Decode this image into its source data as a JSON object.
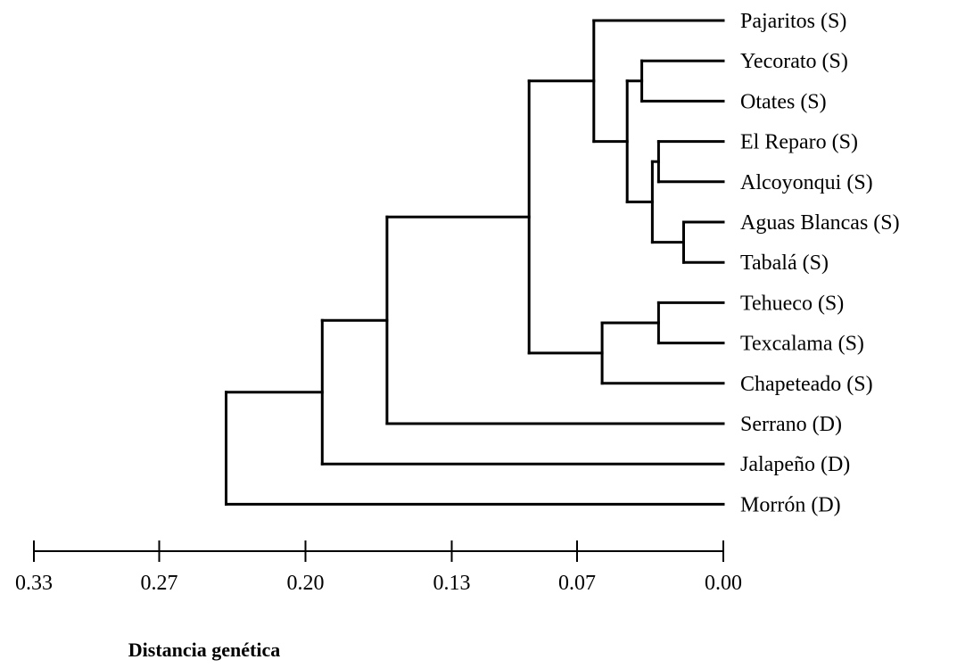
{
  "chart_data": {
    "type": "dendrogram",
    "xlabel": "Distancia genética",
    "x_ticks": [
      "0.33",
      "0.27",
      "0.20",
      "0.13",
      "0.07",
      "0.00"
    ],
    "x_tick_values": [
      0.33,
      0.27,
      0.2,
      0.13,
      0.07,
      0.0
    ],
    "xlim": [
      0.33,
      0.0
    ],
    "leaves": [
      "Pajaritos (S)",
      "Yecorato (S)",
      "Otates (S)",
      "El Reparo (S)",
      "Alcoyonqui (S)",
      "Aguas Blancas (S)",
      "Tabalá (S)",
      "Tehueco (S)",
      "Texcalama (S)",
      "Chapeteado (S)",
      "Serrano (D)",
      "Jalapeño (D)",
      "Morrón (D)"
    ],
    "merges": [
      {
        "children": [
          "Yecorato (S)",
          "Otates (S)"
        ],
        "distance": 0.039
      },
      {
        "children": [
          "El Reparo (S)",
          "Alcoyonqui (S)"
        ],
        "distance": 0.031
      },
      {
        "children": [
          "Aguas Blancas (S)",
          "Tabalá (S)"
        ],
        "distance": 0.019
      },
      {
        "children": [
          "El Reparo (S) + Alcoyonqui (S)",
          "Aguas Blancas (S) + Tabalá (S)"
        ],
        "distance": 0.034
      },
      {
        "children": [
          "Yecorato (S) + Otates (S)",
          "El Reparo (S) … Tabalá (S)"
        ],
        "distance": 0.046
      },
      {
        "children": [
          "Pajaritos (S)",
          "Yecorato (S) … Tabalá (S)"
        ],
        "distance": 0.062
      },
      {
        "children": [
          "Tehueco (S)",
          "Texcalama (S)"
        ],
        "distance": 0.031
      },
      {
        "children": [
          "Tehueco (S) + Texcalama (S)",
          "Chapeteado (S)"
        ],
        "distance": 0.058
      },
      {
        "children": [
          "Pajaritos (S) … Tabalá (S)",
          "Tehueco (S) … Chapeteado (S)"
        ],
        "distance": 0.093
      },
      {
        "children": [
          "S group",
          "Serrano (D)"
        ],
        "distance": 0.161
      },
      {
        "children": [
          "S group + Serrano (D)",
          "Jalapeño (D)"
        ],
        "distance": 0.192
      },
      {
        "children": [
          "S group + Serrano (D) + Jalapeño (D)",
          "Morrón (D)"
        ],
        "distance": 0.238
      }
    ]
  }
}
